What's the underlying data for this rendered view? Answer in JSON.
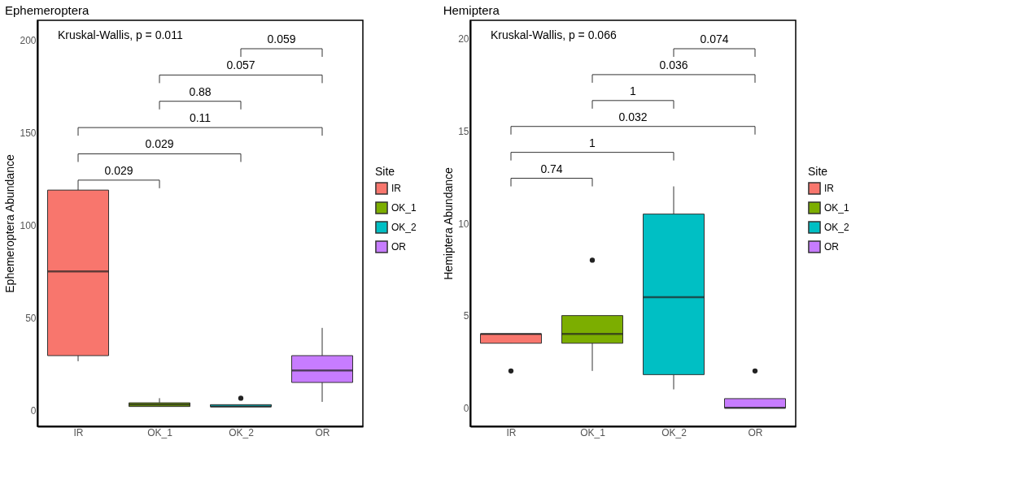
{
  "chart_data": [
    {
      "type": "box",
      "title": "Ephemeroptera",
      "ylabel": "Ephemeroptera Abundance",
      "legend_title": "Site",
      "legend": "right",
      "grid": false,
      "categories": [
        "IR",
        "OK_1",
        "OK_2",
        "OR"
      ],
      "series": [
        {
          "name": "IR",
          "color": "#f8766d",
          "boxes": [
            {
              "low": 26.5,
              "q1": 29.5,
              "median": 75,
              "q3": 119,
              "high": 120
            },
            null,
            null,
            null
          ]
        },
        {
          "name": "OK_1",
          "color": "#7cae00",
          "boxes": [
            null,
            {
              "low": 2,
              "q1": 2,
              "median": 3,
              "q3": 4,
              "high": 6.5
            },
            null,
            null
          ]
        },
        {
          "name": "OK_2",
          "color": "#00bfc4",
          "boxes": [
            null,
            null,
            {
              "low": 2,
              "q1": 2,
              "median": 2,
              "q3": 3,
              "high": 3,
              "outliers": [
                6.5
              ]
            },
            null
          ]
        },
        {
          "name": "OR",
          "color": "#c77cff",
          "boxes": [
            null,
            null,
            null,
            {
              "low": 4.5,
              "q1": 15,
              "median": 21.5,
              "q3": 29.5,
              "high": 44.5
            }
          ]
        }
      ],
      "ylim": [
        -8.7,
        210.8
      ],
      "yticks": [
        0,
        50,
        100,
        150,
        200
      ],
      "annotations": [
        "Kruskal-Wallis, p = 0.011",
        "0.029",
        "0.029",
        "0.11",
        "0.88",
        "0.057",
        "0.059"
      ]
    },
    {
      "type": "box",
      "title": "Hemiptera",
      "ylabel": "Hemiptera Abundance",
      "legend_title": "Site",
      "legend": "right",
      "grid": false,
      "categories": [
        "IR",
        "OK_1",
        "OK_2",
        "OR"
      ],
      "series": [
        {
          "name": "IR",
          "color": "#f8766d",
          "boxes": [
            {
              "low": 3.5,
              "q1": 3.5,
              "median": 4,
              "q3": 4,
              "high": 4,
              "outliers": [
                2
              ]
            },
            null,
            null,
            null
          ]
        },
        {
          "name": "OK_1",
          "color": "#7cae00",
          "boxes": [
            null,
            {
              "low": 2,
              "q1": 3.5,
              "median": 4,
              "q3": 5,
              "high": 5,
              "outliers": [
                8
              ]
            },
            null,
            null
          ]
        },
        {
          "name": "OK_2",
          "color": "#00bfc4",
          "boxes": [
            null,
            null,
            {
              "low": 1,
              "q1": 1.8,
              "median": 6,
              "q3": 10.5,
              "high": 12
            },
            null
          ]
        },
        {
          "name": "OR",
          "color": "#c77cff",
          "boxes": [
            null,
            null,
            null,
            {
              "low": 0,
              "q1": 0,
              "median": 0,
              "q3": 0.5,
              "high": 0.5,
              "outliers": [
                2
              ]
            }
          ]
        }
      ],
      "ylim": [
        -1,
        21
      ],
      "yticks": [
        0,
        5,
        10,
        15,
        20
      ],
      "annotations": [
        "Kruskal-Wallis, p = 0.066",
        "0.74",
        "1",
        "0.032",
        "1",
        "0.036",
        "0.074"
      ]
    }
  ]
}
